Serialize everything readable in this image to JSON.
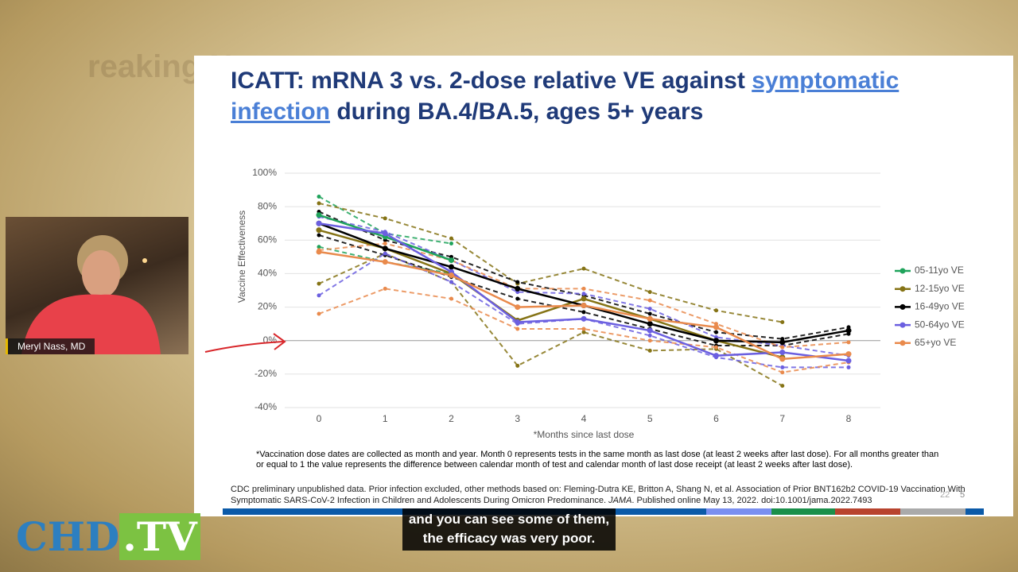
{
  "background_text": "reaking News",
  "webcam": {
    "name": "Meryl Nass, MD"
  },
  "logo": {
    "main": "CHD",
    "suffix": ".TV"
  },
  "caption": {
    "lines": [
      "and you can see some of them,",
      "the efficacy was very poor."
    ]
  },
  "slide": {
    "title_parts": [
      "ICATT: mRNA 3 vs. 2-dose relative VE against ",
      "symptomatic infection",
      " during BA.4/BA.5, ages 5+ years"
    ],
    "footnote": "*Vaccination dose dates are collected as month and year. Month 0 represents tests in the same month as last dose (at least 2 weeks after last dose).  For all months greater than or equal to 1 the value represents the difference between calendar month of test and calendar month of last dose receipt (at least 2 weeks after last dose).",
    "source_parts": [
      "CDC preliminary unpublished data. Prior infection excluded, other methods based on: Fleming-Dutra KE, Britton A, Shang N, et al. Association of Prior BNT162b2 COVID-19 Vaccination With Symptomatic SARS-CoV-2 Infection in Children and Adolescents During Omicron Predominance. ",
      "JAMA",
      ". Published online May 13, 2022. doi:10.1001/jama.2022.7493"
    ],
    "page_numbers": [
      "22",
      "5"
    ]
  },
  "chart_data": {
    "type": "line",
    "x_label": "*Months since last dose",
    "y_label": "Vaccine Effectiveness",
    "categories": [
      "0",
      "1",
      "2",
      "3",
      "4",
      "5",
      "6",
      "7",
      "8"
    ],
    "ylim": [
      -40,
      100
    ],
    "yticks": [
      {
        "value": -40,
        "label": "-40%"
      },
      {
        "value": -20,
        "label": "-20%"
      },
      {
        "value": 0,
        "label": "0%"
      },
      {
        "value": 20,
        "label": "20%"
      },
      {
        "value": 40,
        "label": "40%"
      },
      {
        "value": 60,
        "label": "60%"
      },
      {
        "value": 80,
        "label": "80%"
      },
      {
        "value": 100,
        "label": "100%"
      }
    ],
    "grid": true,
    "legend": "right",
    "series": [
      {
        "name": "05-11yo VE",
        "color": "#1fa35b",
        "values": [
          75,
          62,
          48,
          null,
          null,
          null,
          null,
          null,
          null
        ],
        "ci_lower": [
          56,
          47,
          40,
          null,
          null,
          null,
          null,
          null,
          null
        ],
        "ci_upper": [
          86,
          64,
          58,
          null,
          null,
          null,
          null,
          null,
          null
        ]
      },
      {
        "name": "12-15yo VE",
        "color": "#857315",
        "values": [
          66,
          55,
          40,
          12,
          25,
          13,
          0,
          -10,
          null
        ],
        "ci_lower": [
          34,
          52,
          35,
          -15,
          5,
          -6,
          -5,
          -27,
          null
        ],
        "ci_upper": [
          82,
          73,
          61,
          34,
          43,
          29,
          18,
          11,
          null
        ]
      },
      {
        "name": "16-49yo VE",
        "color": "#000000",
        "values": [
          70,
          55,
          44,
          31,
          21,
          10,
          0,
          -1,
          6
        ],
        "ci_lower": [
          63,
          51,
          38,
          25,
          17,
          7,
          -3,
          -3,
          4
        ],
        "ci_upper": [
          77,
          60,
          50,
          35,
          27,
          16,
          5,
          1,
          8
        ]
      },
      {
        "name": "50-64yo VE",
        "color": "#6b5fe0",
        "values": [
          70,
          64,
          41,
          11,
          13,
          6,
          -9,
          -7,
          -12
        ],
        "ci_lower": [
          27,
          52,
          35,
          10,
          13,
          3,
          -10,
          -16,
          -16
        ],
        "ci_upper": [
          74,
          65,
          48,
          29,
          28,
          19,
          2,
          -3,
          -9
        ]
      },
      {
        "name": "65+yo VE",
        "color": "#e98a4c",
        "values": [
          53,
          47,
          39,
          20,
          21,
          13,
          8,
          -11,
          -8
        ],
        "ci_lower": [
          16,
          31,
          25,
          7,
          7,
          0,
          -4,
          -19,
          -13
        ],
        "ci_upper": [
          54,
          58,
          48,
          31,
          31,
          24,
          10,
          -4,
          -1
        ]
      }
    ]
  }
}
